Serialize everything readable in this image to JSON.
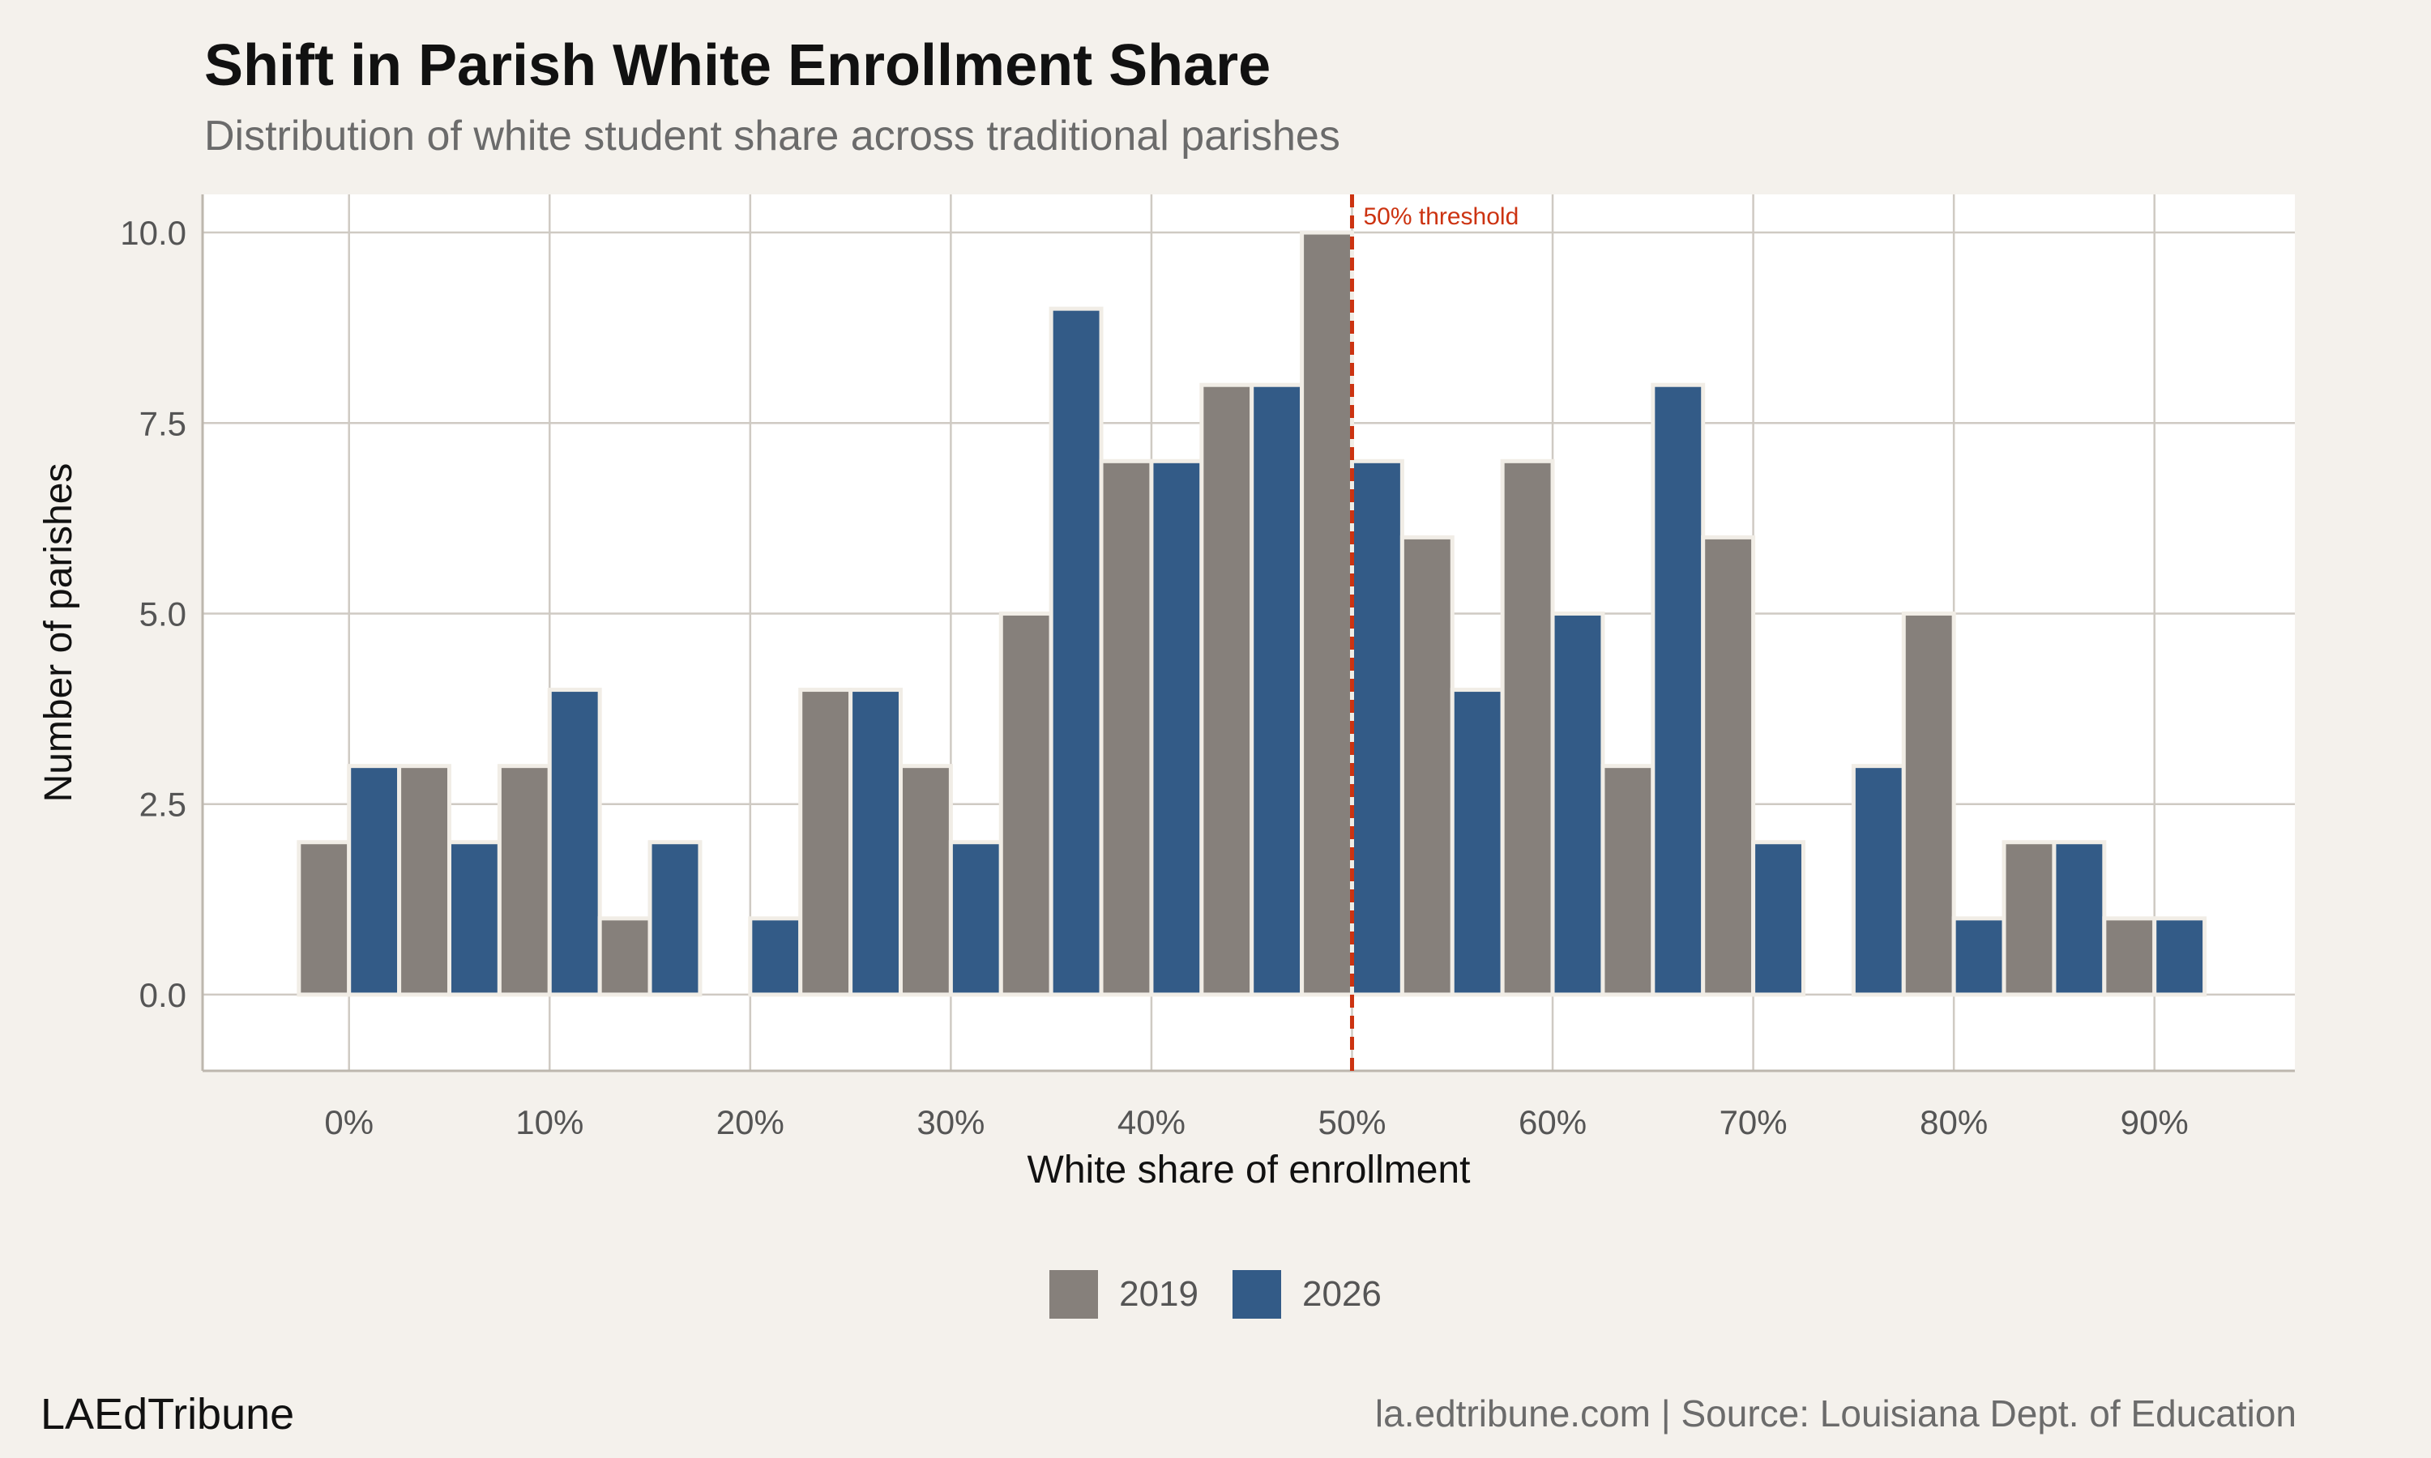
{
  "title": "Shift in Parish White Enrollment Share",
  "subtitle": "Distribution of white student share across traditional parishes",
  "brand": "LAEdTribune",
  "source": "la.edtribune.com | Source: Louisiana Dept. of Education",
  "colors": {
    "2019": "#86807b",
    "2026": "#335b87",
    "threshold": "#cc3311",
    "background": "#f4f1ec",
    "panel": "#ffffff",
    "grid": "#cfcac3"
  },
  "chart_data": {
    "type": "bar",
    "title": "Shift in Parish White Enrollment Share",
    "subtitle": "Distribution of white student share across traditional parishes",
    "xlabel": "White share of enrollment",
    "ylabel": "Number of parishes",
    "xlim": [
      -7.3,
      97
    ],
    "ylim": [
      -1,
      10.5
    ],
    "x_ticks": [
      0,
      10,
      20,
      30,
      40,
      50,
      60,
      70,
      80,
      90
    ],
    "x_tick_labels": [
      "0%",
      "10%",
      "20%",
      "30%",
      "40%",
      "50%",
      "60%",
      "70%",
      "80%",
      "90%"
    ],
    "y_ticks": [
      0,
      2.5,
      5,
      7.5,
      10
    ],
    "y_tick_labels": [
      "0.0",
      "2.5",
      "5.0",
      "7.5",
      "10.0"
    ],
    "bin_width": 2.5,
    "grid": true,
    "legend_position": "bottom",
    "reference_line": {
      "x": 50,
      "label": "50% threshold"
    },
    "series": [
      {
        "name": "2019",
        "bins": [
          {
            "x": -1.25,
            "value": 2
          },
          {
            "x": 3.75,
            "value": 3
          },
          {
            "x": 8.75,
            "value": 3
          },
          {
            "x": 13.75,
            "value": 1
          },
          {
            "x": 18.75,
            "value": 0
          },
          {
            "x": 23.75,
            "value": 4
          },
          {
            "x": 28.75,
            "value": 3
          },
          {
            "x": 33.75,
            "value": 5
          },
          {
            "x": 38.75,
            "value": 7
          },
          {
            "x": 43.75,
            "value": 8
          },
          {
            "x": 48.75,
            "value": 10
          },
          {
            "x": 53.75,
            "value": 6
          },
          {
            "x": 58.75,
            "value": 7
          },
          {
            "x": 63.75,
            "value": 3
          },
          {
            "x": 68.75,
            "value": 6
          },
          {
            "x": 73.75,
            "value": 0
          },
          {
            "x": 78.75,
            "value": 5
          },
          {
            "x": 83.75,
            "value": 2
          },
          {
            "x": 88.75,
            "value": 1
          }
        ]
      },
      {
        "name": "2026",
        "bins": [
          {
            "x": 1.25,
            "value": 3
          },
          {
            "x": 6.25,
            "value": 2
          },
          {
            "x": 11.25,
            "value": 4
          },
          {
            "x": 16.25,
            "value": 2
          },
          {
            "x": 21.25,
            "value": 1
          },
          {
            "x": 26.25,
            "value": 4
          },
          {
            "x": 31.25,
            "value": 2
          },
          {
            "x": 36.25,
            "value": 9
          },
          {
            "x": 41.25,
            "value": 7
          },
          {
            "x": 46.25,
            "value": 8
          },
          {
            "x": 51.25,
            "value": 7
          },
          {
            "x": 56.25,
            "value": 4
          },
          {
            "x": 61.25,
            "value": 5
          },
          {
            "x": 66.25,
            "value": 8
          },
          {
            "x": 71.25,
            "value": 2
          },
          {
            "x": 76.25,
            "value": 3
          },
          {
            "x": 81.25,
            "value": 1
          },
          {
            "x": 86.25,
            "value": 2
          },
          {
            "x": 91.25,
            "value": 1
          }
        ]
      }
    ]
  }
}
